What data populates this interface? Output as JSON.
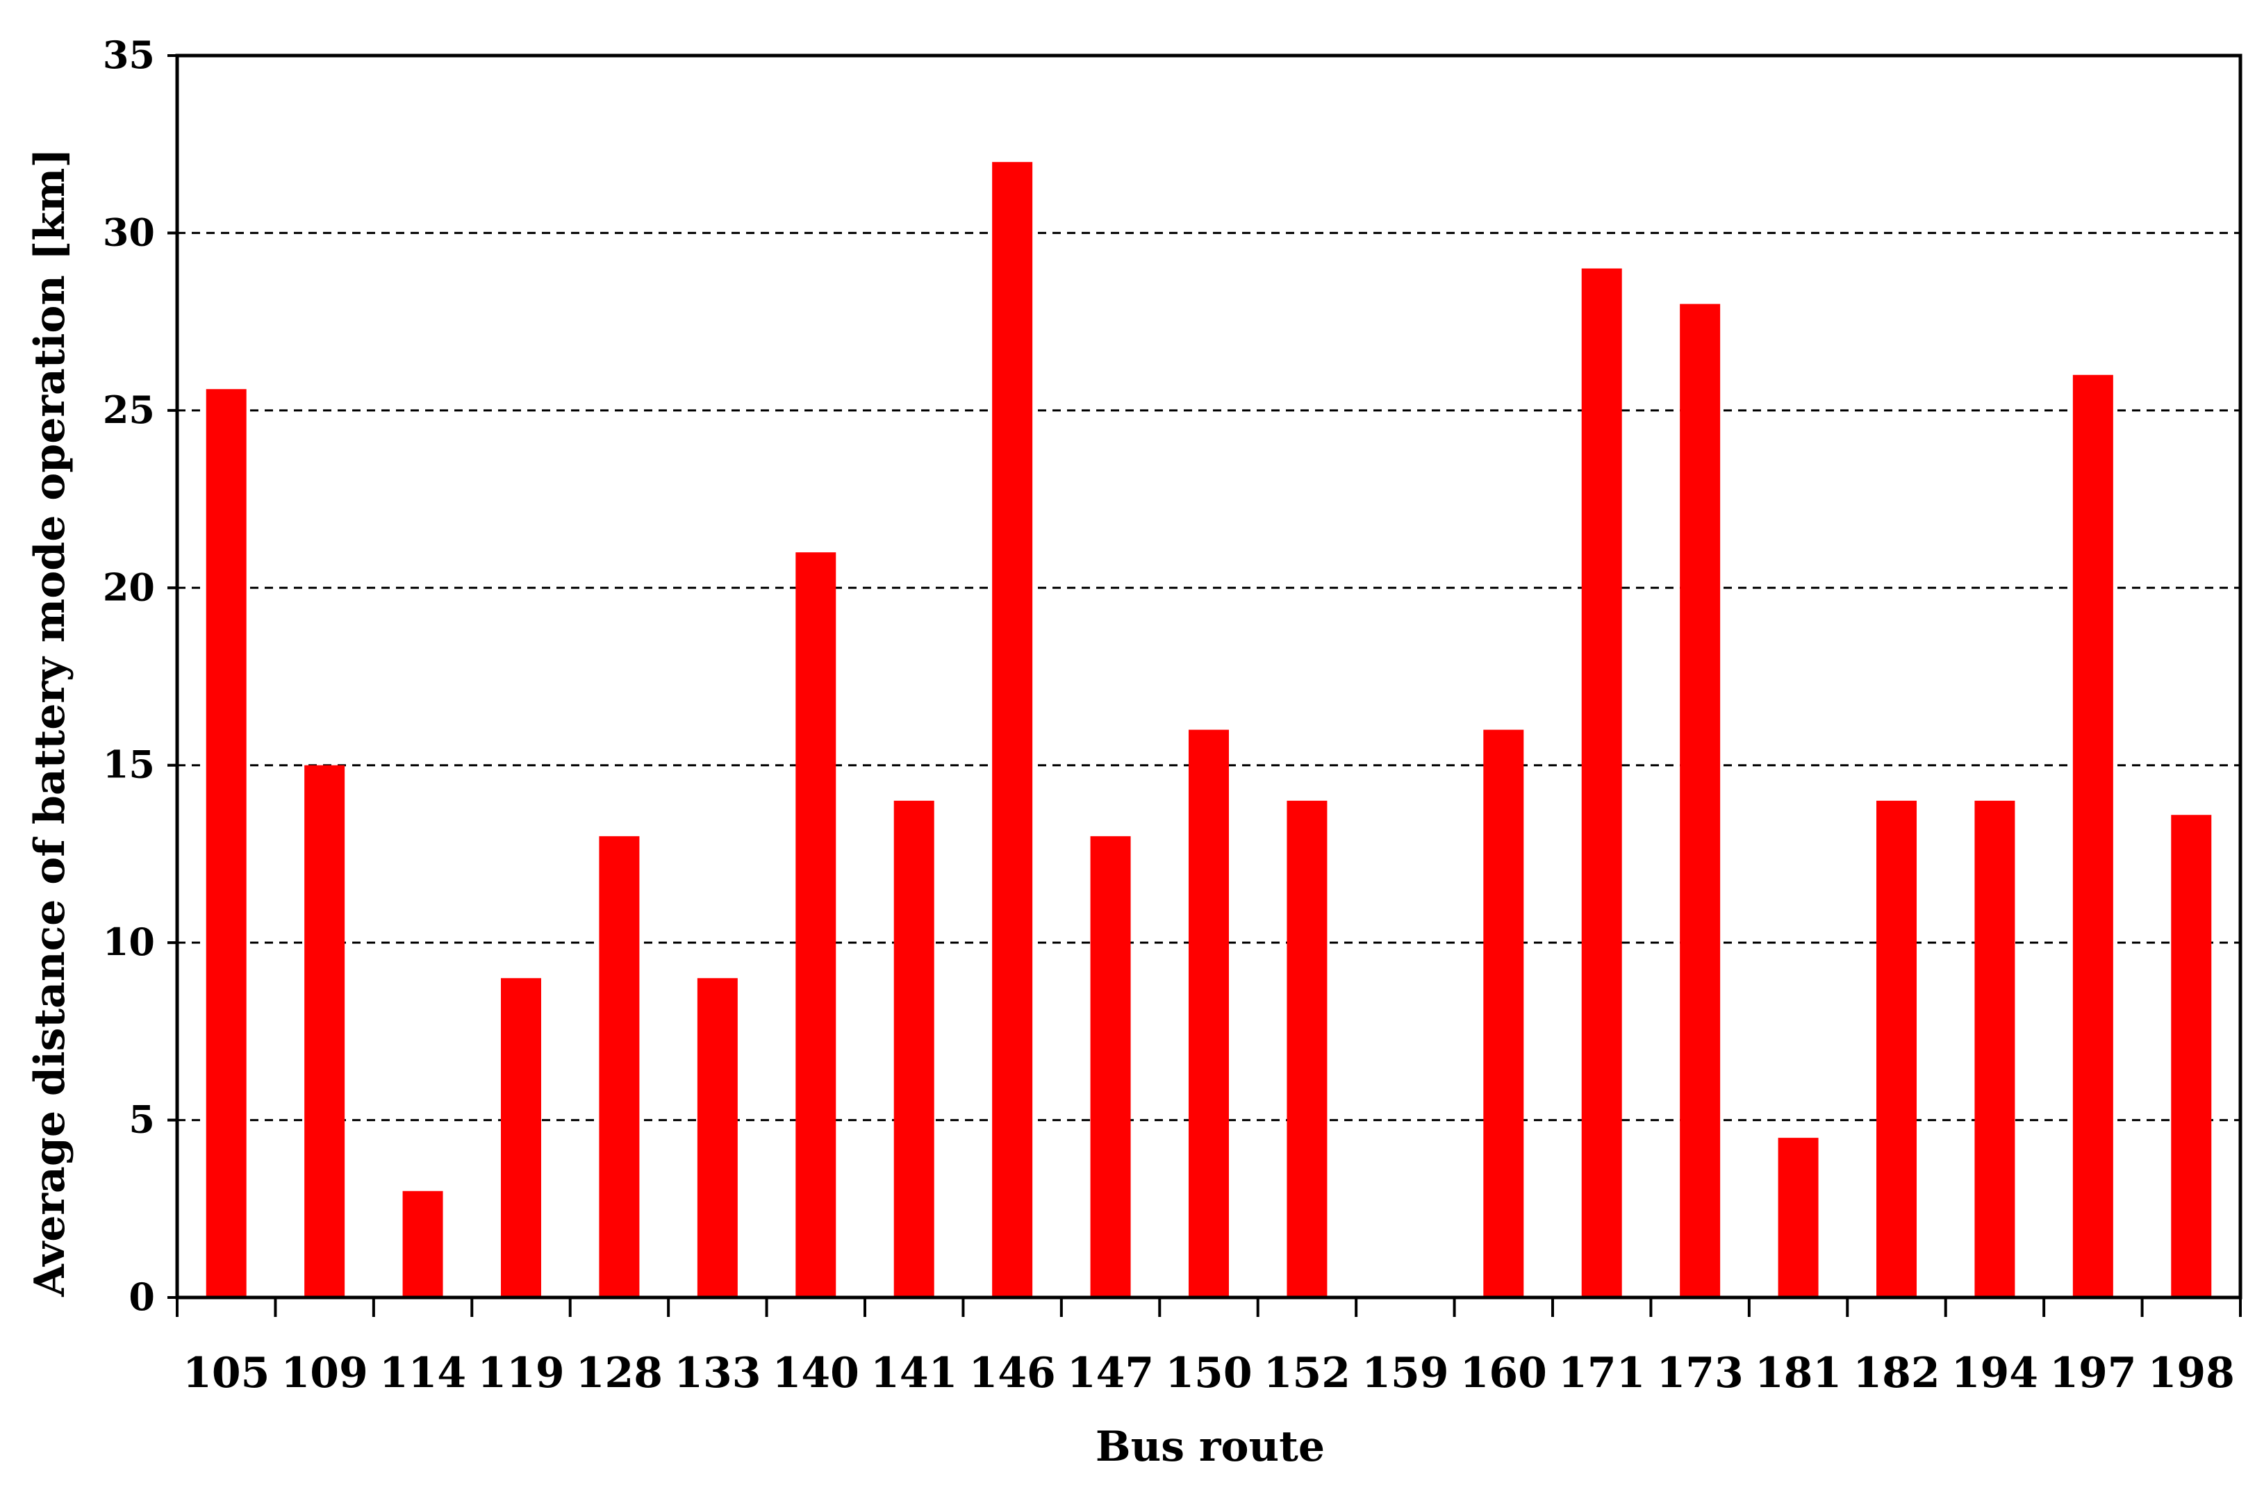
{
  "chart_data": {
    "type": "bar",
    "title": "",
    "xlabel": "Bus route",
    "ylabel": "Average distance of battery mode operation [km]",
    "ylim": [
      0,
      35
    ],
    "yticks": [
      0,
      5,
      10,
      15,
      20,
      25,
      30,
      35
    ],
    "grid": "horizontal dashed",
    "legend": "none",
    "bar_color": "#ff0000",
    "categories": [
      "105",
      "109",
      "114",
      "119",
      "128",
      "133",
      "140",
      "141",
      "146",
      "147",
      "150",
      "152",
      "159",
      "160",
      "171",
      "173",
      "181",
      "182",
      "194",
      "197",
      "198"
    ],
    "values": [
      25.6,
      15,
      3,
      9,
      13,
      9,
      21,
      14,
      32,
      13,
      16,
      14,
      0,
      16,
      29,
      28,
      4.5,
      14,
      14,
      26,
      13.6
    ]
  }
}
